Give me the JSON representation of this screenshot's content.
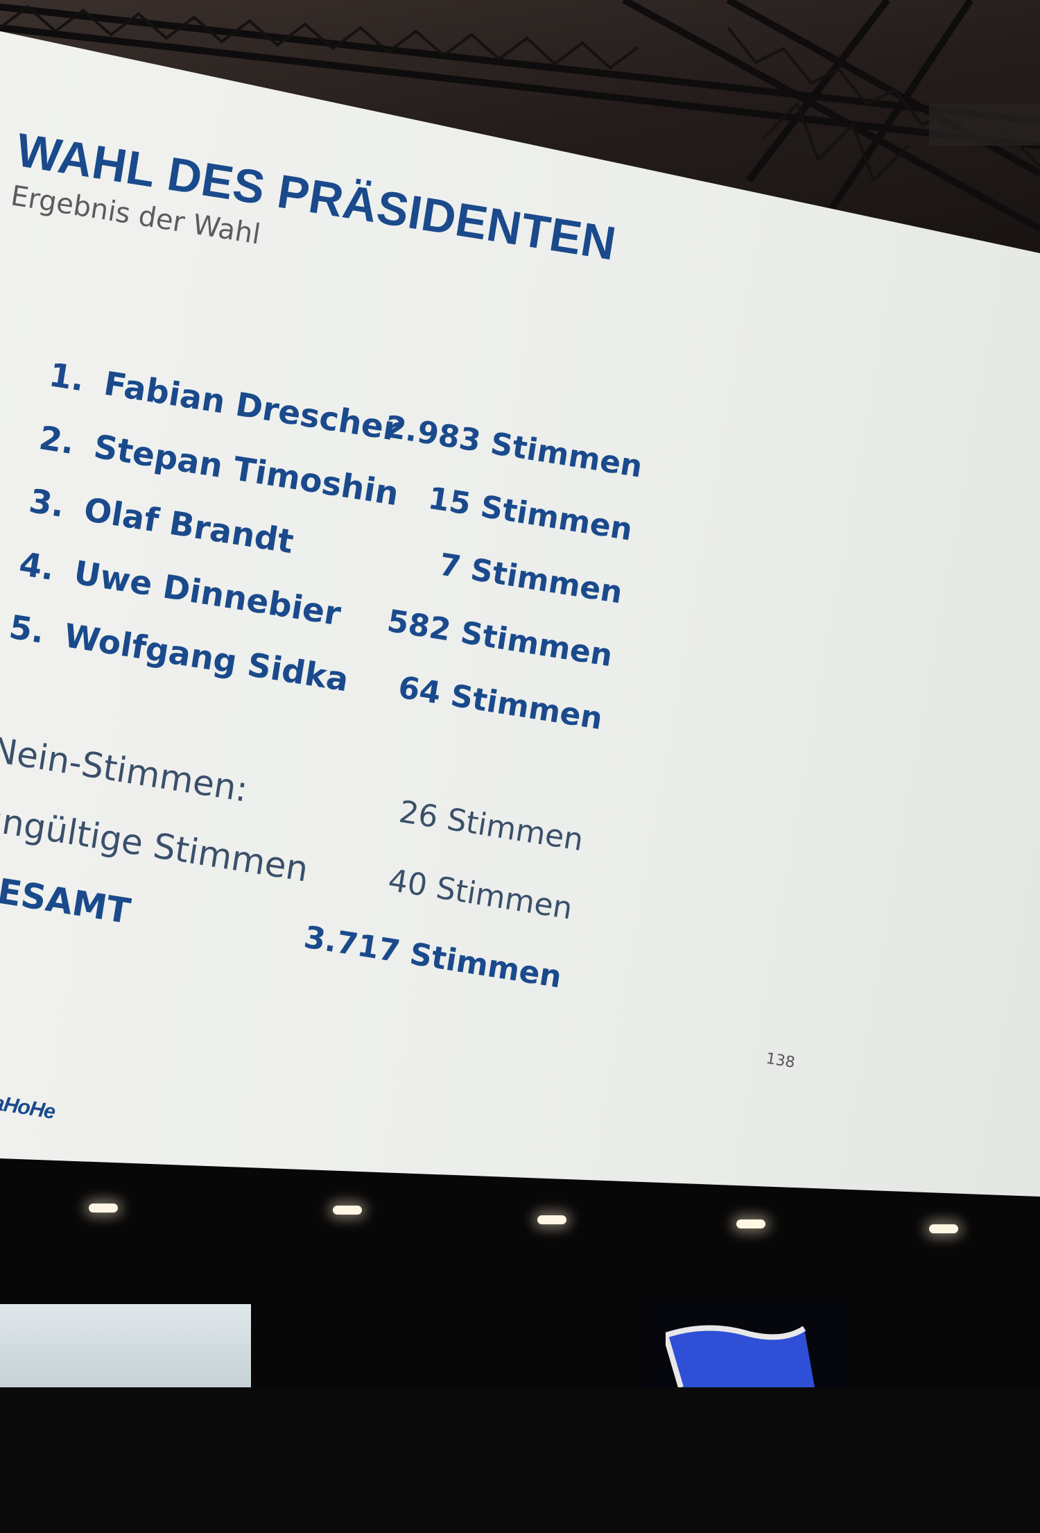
{
  "slide": {
    "title": "WAHL DES PRÄSIDENTEN",
    "subtitle": "Ergebnis der Wahl",
    "candidates": [
      {
        "rank": "1.",
        "name": "Fabian Drescher",
        "votes": "2.983 Stimmen"
      },
      {
        "rank": "2.",
        "name": "Stepan Timoshin",
        "votes": "15 Stimmen"
      },
      {
        "rank": "3.",
        "name": "Olaf Brandt",
        "votes": "7 Stimmen"
      },
      {
        "rank": "4.",
        "name": "Uwe Dinnebier",
        "votes": "582 Stimmen"
      },
      {
        "rank": "5.",
        "name": "Wolfgang Sidka",
        "votes": "64 Stimmen"
      }
    ],
    "summary": [
      {
        "label": "Nein-Stimmen:",
        "value": "26 Stimmen"
      },
      {
        "label": "ungültige Stimmen",
        "value": "40 Stimmen"
      },
      {
        "label": "GESAMT",
        "value": "3.717 Stimmen"
      }
    ],
    "logo_text": "HaHoHe",
    "page_number": "138"
  },
  "colors": {
    "accent_blue": "#1a4a8c",
    "subtitle_gray": "#5a5c5d",
    "screen_white": "#eceeeb"
  }
}
